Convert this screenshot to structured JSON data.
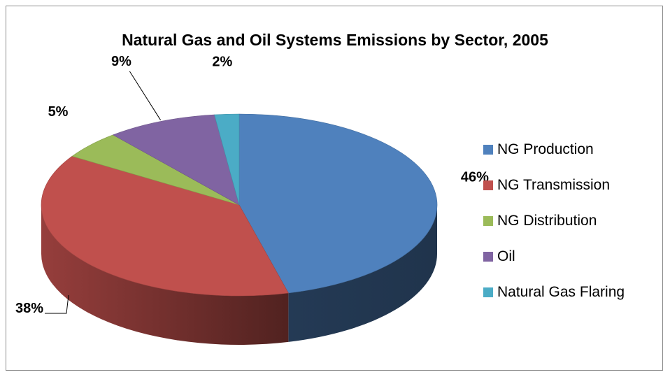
{
  "chart_data": {
    "type": "pie",
    "title": "Natural Gas and Oil Systems Emissions by Sector, 2005",
    "categories": [
      "NG Production",
      "NG Transmission",
      "NG Distribution",
      "Oil",
      "Natural Gas Flaring"
    ],
    "values": [
      46,
      38,
      5,
      9,
      2
    ],
    "data_labels": [
      "46%",
      "38%",
      "5%",
      "9%",
      "2%"
    ],
    "colors": [
      "#4f81bd",
      "#c0504d",
      "#9bbb59",
      "#8064a2",
      "#4bacc6"
    ],
    "style": "3d",
    "legend_position": "right"
  }
}
